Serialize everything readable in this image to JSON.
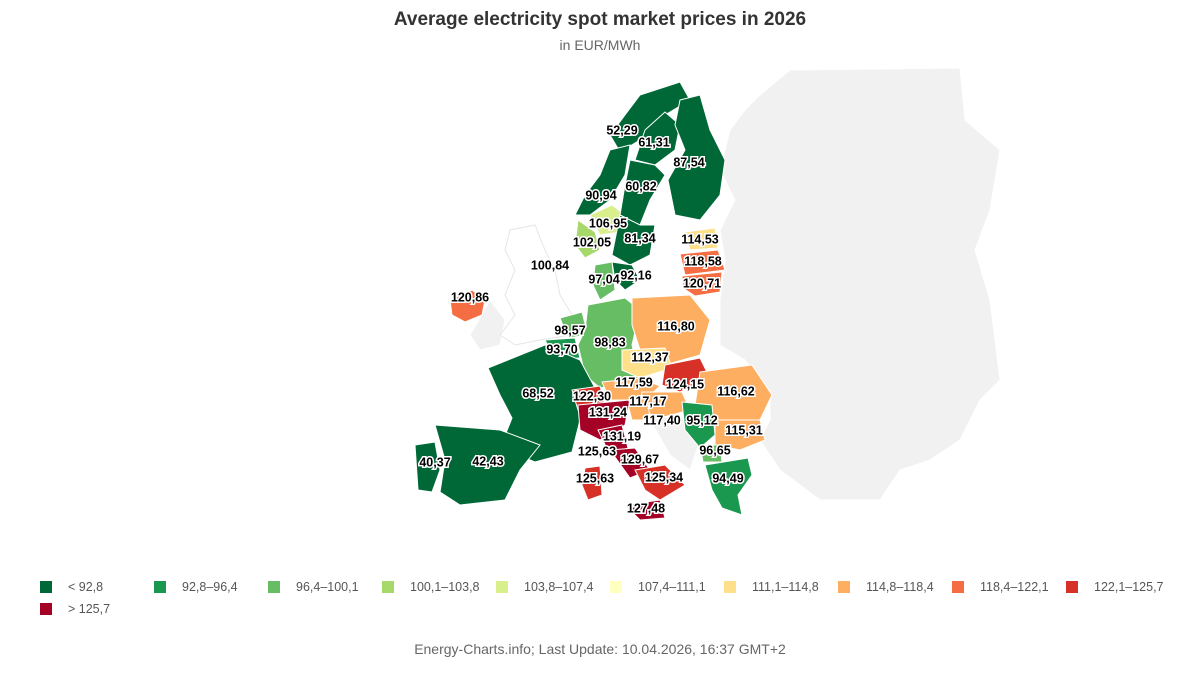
{
  "title": "Average electricity spot market prices in 2026",
  "subtitle": "in EUR/MWh",
  "footer": "Energy-Charts.info; Last Update: 10.04.2026, 16:37 GMT+2",
  "colors": {
    "background_land": "#f1f1f1",
    "border": "#ffffff",
    "no_data_bidding_zone": "#ffffff"
  },
  "legend": [
    {
      "label": "< 92,8",
      "color": "#006837"
    },
    {
      "label": "92,8–96,4",
      "color": "#1a9850"
    },
    {
      "label": "96,4–100,1",
      "color": "#66bd63"
    },
    {
      "label": "100,1–103,8",
      "color": "#a6d96a"
    },
    {
      "label": "103,8–107,4",
      "color": "#d9ef8b"
    },
    {
      "label": "107,4–111,1",
      "color": "#ffffbf"
    },
    {
      "label": "111,1–114,8",
      "color": "#fee08b"
    },
    {
      "label": "114,8–118,4",
      "color": "#fdae61"
    },
    {
      "label": "118,4–122,1",
      "color": "#f46d43"
    },
    {
      "label": "122,1–125,7",
      "color": "#d73027"
    },
    {
      "label": "> 125,7",
      "color": "#a50026"
    }
  ],
  "regions": [
    {
      "id": "NO4",
      "value": "52,29"
    },
    {
      "id": "SE1",
      "value": "61,31"
    },
    {
      "id": "FI",
      "value": "87,54"
    },
    {
      "id": "SE2",
      "value": "60,82"
    },
    {
      "id": "NO3",
      "value": "90,94"
    },
    {
      "id": "NO1",
      "value": "106,95"
    },
    {
      "id": "NO5",
      "value": "102,05"
    },
    {
      "id": "SE3",
      "value": "81,34"
    },
    {
      "id": "EE",
      "value": "114,53"
    },
    {
      "id": "GB",
      "value": "100,84"
    },
    {
      "id": "LV",
      "value": "118,58"
    },
    {
      "id": "DK1",
      "value": "97,04"
    },
    {
      "id": "SE4",
      "value": "92,16"
    },
    {
      "id": "LT",
      "value": "120,71"
    },
    {
      "id": "IE",
      "value": "120,86"
    },
    {
      "id": "PL",
      "value": "116,80"
    },
    {
      "id": "NL",
      "value": "98,57"
    },
    {
      "id": "DE-LU",
      "value": "98,83"
    },
    {
      "id": "BE",
      "value": "93,70"
    },
    {
      "id": "CZ",
      "value": "112,37"
    },
    {
      "id": "SK",
      "value": "124,15"
    },
    {
      "id": "AT",
      "value": "117,59"
    },
    {
      "id": "FR",
      "value": "68,52"
    },
    {
      "id": "CH",
      "value": "122,30"
    },
    {
      "id": "RO",
      "value": "116,62"
    },
    {
      "id": "HU",
      "value": "117,17"
    },
    {
      "id": "IT-North",
      "value": "131,24"
    },
    {
      "id": "SI",
      "value": "117,40"
    },
    {
      "id": "RS",
      "value": "95,12"
    },
    {
      "id": "BG",
      "value": "115,31"
    },
    {
      "id": "IT-Centre-North",
      "value": "131,19"
    },
    {
      "id": "IT-Centre-South",
      "value": "129,67"
    },
    {
      "id": "IT-Sardinia",
      "value": "125,63"
    },
    {
      "id": "IT-Sardinia-2",
      "value": "125,63"
    },
    {
      "id": "MK",
      "value": "96,65"
    },
    {
      "id": "IT-South",
      "value": "125,34"
    },
    {
      "id": "PT",
      "value": "40,37"
    },
    {
      "id": "ES",
      "value": "42,43"
    },
    {
      "id": "GR",
      "value": "94,49"
    },
    {
      "id": "IT-Sicily",
      "value": "127,48"
    }
  ]
}
